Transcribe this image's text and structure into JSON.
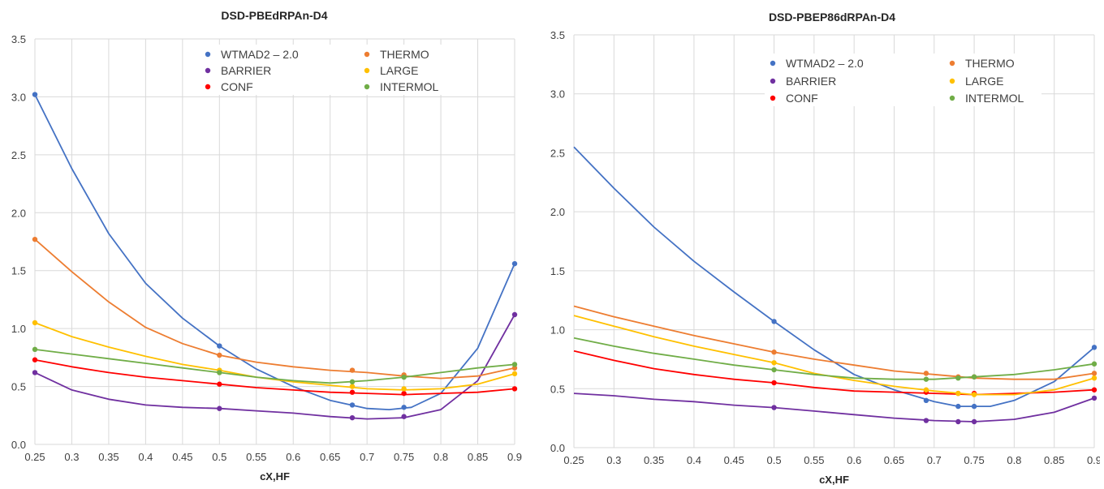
{
  "chart_data": [
    {
      "type": "line",
      "title": "DSD-PBEdRPAn-D4",
      "xlabel": "cX,HF",
      "ylabel": "",
      "xlim": [
        0.25,
        0.9
      ],
      "ylim": [
        0.0,
        3.5
      ],
      "x_ticks": [
        "0.25",
        "0.3",
        "0.35",
        "0.4",
        "0.45",
        "0.5",
        "0.55",
        "0.6",
        "0.65",
        "0.7",
        "0.75",
        "0.8",
        "0.85",
        "0.9"
      ],
      "y_ticks": [
        "0.0",
        "0.5",
        "1.0",
        "1.5",
        "2.0",
        "2.5",
        "3.0",
        "3.5"
      ],
      "grid": true,
      "legend_position": "top-center",
      "series": [
        {
          "name": "WTMAD2 – 2.0",
          "color": "#4472C4",
          "points": [
            [
              0.25,
              3.02
            ],
            [
              0.5,
              0.85
            ],
            [
              0.68,
              0.34
            ],
            [
              0.75,
              0.32
            ],
            [
              0.9,
              1.56
            ]
          ],
          "curve": [
            [
              0.25,
              3.02
            ],
            [
              0.3,
              2.38
            ],
            [
              0.35,
              1.82
            ],
            [
              0.4,
              1.39
            ],
            [
              0.45,
              1.09
            ],
            [
              0.5,
              0.85
            ],
            [
              0.55,
              0.65
            ],
            [
              0.6,
              0.5
            ],
            [
              0.65,
              0.38
            ],
            [
              0.7,
              0.31
            ],
            [
              0.73,
              0.3
            ],
            [
              0.76,
              0.32
            ],
            [
              0.8,
              0.44
            ],
            [
              0.85,
              0.83
            ],
            [
              0.9,
              1.56
            ]
          ]
        },
        {
          "name": "BARRIER",
          "color": "#7030A0",
          "points": [
            [
              0.25,
              0.62
            ],
            [
              0.5,
              0.31
            ],
            [
              0.68,
              0.23
            ],
            [
              0.75,
              0.24
            ],
            [
              0.9,
              1.12
            ]
          ],
          "curve": [
            [
              0.25,
              0.62
            ],
            [
              0.3,
              0.47
            ],
            [
              0.35,
              0.39
            ],
            [
              0.4,
              0.34
            ],
            [
              0.45,
              0.32
            ],
            [
              0.5,
              0.31
            ],
            [
              0.55,
              0.29
            ],
            [
              0.6,
              0.27
            ],
            [
              0.65,
              0.24
            ],
            [
              0.7,
              0.22
            ],
            [
              0.75,
              0.23
            ],
            [
              0.8,
              0.3
            ],
            [
              0.85,
              0.55
            ],
            [
              0.9,
              1.12
            ]
          ]
        },
        {
          "name": "CONF",
          "color": "#FF0000",
          "points": [
            [
              0.25,
              0.73
            ],
            [
              0.5,
              0.52
            ],
            [
              0.68,
              0.45
            ],
            [
              0.75,
              0.44
            ],
            [
              0.9,
              0.48
            ]
          ],
          "curve": [
            [
              0.25,
              0.73
            ],
            [
              0.3,
              0.67
            ],
            [
              0.35,
              0.62
            ],
            [
              0.4,
              0.58
            ],
            [
              0.45,
              0.55
            ],
            [
              0.5,
              0.52
            ],
            [
              0.55,
              0.49
            ],
            [
              0.6,
              0.47
            ],
            [
              0.65,
              0.45
            ],
            [
              0.7,
              0.44
            ],
            [
              0.75,
              0.43
            ],
            [
              0.8,
              0.44
            ],
            [
              0.85,
              0.45
            ],
            [
              0.9,
              0.48
            ]
          ]
        },
        {
          "name": "THERMO",
          "color": "#ED7D31",
          "points": [
            [
              0.25,
              1.77
            ],
            [
              0.5,
              0.77
            ],
            [
              0.68,
              0.64
            ],
            [
              0.75,
              0.6
            ],
            [
              0.9,
              0.66
            ]
          ],
          "curve": [
            [
              0.25,
              1.77
            ],
            [
              0.3,
              1.49
            ],
            [
              0.35,
              1.23
            ],
            [
              0.4,
              1.01
            ],
            [
              0.45,
              0.87
            ],
            [
              0.5,
              0.77
            ],
            [
              0.55,
              0.71
            ],
            [
              0.6,
              0.67
            ],
            [
              0.65,
              0.64
            ],
            [
              0.7,
              0.62
            ],
            [
              0.75,
              0.59
            ],
            [
              0.8,
              0.57
            ],
            [
              0.85,
              0.59
            ],
            [
              0.9,
              0.66
            ]
          ]
        },
        {
          "name": "LARGE",
          "color": "#FFC000",
          "points": [
            [
              0.25,
              1.05
            ],
            [
              0.5,
              0.64
            ],
            [
              0.68,
              0.5
            ],
            [
              0.75,
              0.48
            ],
            [
              0.9,
              0.61
            ]
          ],
          "curve": [
            [
              0.25,
              1.05
            ],
            [
              0.3,
              0.93
            ],
            [
              0.35,
              0.84
            ],
            [
              0.4,
              0.76
            ],
            [
              0.45,
              0.69
            ],
            [
              0.5,
              0.64
            ],
            [
              0.55,
              0.58
            ],
            [
              0.6,
              0.54
            ],
            [
              0.65,
              0.51
            ],
            [
              0.7,
              0.48
            ],
            [
              0.75,
              0.47
            ],
            [
              0.8,
              0.48
            ],
            [
              0.85,
              0.52
            ],
            [
              0.9,
              0.61
            ]
          ]
        },
        {
          "name": "INTERMOL",
          "color": "#70AD47",
          "points": [
            [
              0.25,
              0.82
            ],
            [
              0.5,
              0.62
            ],
            [
              0.68,
              0.54
            ],
            [
              0.75,
              0.58
            ],
            [
              0.9,
              0.69
            ]
          ],
          "curve": [
            [
              0.25,
              0.82
            ],
            [
              0.3,
              0.78
            ],
            [
              0.35,
              0.74
            ],
            [
              0.4,
              0.7
            ],
            [
              0.45,
              0.66
            ],
            [
              0.5,
              0.62
            ],
            [
              0.55,
              0.58
            ],
            [
              0.6,
              0.55
            ],
            [
              0.65,
              0.53
            ],
            [
              0.7,
              0.55
            ],
            [
              0.75,
              0.58
            ],
            [
              0.8,
              0.62
            ],
            [
              0.85,
              0.66
            ],
            [
              0.9,
              0.69
            ]
          ]
        }
      ]
    },
    {
      "type": "line",
      "title": "DSD-PBEP86dRPAn-D4",
      "xlabel": "cX,HF",
      "ylabel": "",
      "xlim": [
        0.25,
        0.9
      ],
      "ylim": [
        0.0,
        3.5
      ],
      "x_ticks": [
        "0.25",
        "0.3",
        "0.35",
        "0.4",
        "0.45",
        "0.5",
        "0.55",
        "0.6",
        "0.65",
        "0.7",
        "0.75",
        "0.8",
        "0.85",
        "0.9"
      ],
      "y_ticks": [
        "0.0",
        "0.5",
        "1.0",
        "1.5",
        "2.0",
        "2.5",
        "3.0",
        "3.5"
      ],
      "grid": true,
      "legend_position": "top-right",
      "series": [
        {
          "name": "WTMAD2 – 2.0",
          "color": "#4472C4",
          "points": [
            [
              0.5,
              1.07
            ],
            [
              0.69,
              0.4
            ],
            [
              0.73,
              0.35
            ],
            [
              0.75,
              0.35
            ],
            [
              0.9,
              0.85
            ]
          ],
          "curve": [
            [
              0.25,
              2.55
            ],
            [
              0.3,
              2.2
            ],
            [
              0.35,
              1.87
            ],
            [
              0.4,
              1.58
            ],
            [
              0.45,
              1.32
            ],
            [
              0.5,
              1.07
            ],
            [
              0.55,
              0.83
            ],
            [
              0.6,
              0.62
            ],
            [
              0.65,
              0.49
            ],
            [
              0.7,
              0.39
            ],
            [
              0.73,
              0.35
            ],
            [
              0.77,
              0.35
            ],
            [
              0.8,
              0.4
            ],
            [
              0.85,
              0.56
            ],
            [
              0.9,
              0.85
            ]
          ]
        },
        {
          "name": "BARRIER",
          "color": "#7030A0",
          "points": [
            [
              0.5,
              0.34
            ],
            [
              0.69,
              0.23
            ],
            [
              0.73,
              0.22
            ],
            [
              0.75,
              0.22
            ],
            [
              0.9,
              0.42
            ]
          ],
          "curve": [
            [
              0.25,
              0.46
            ],
            [
              0.3,
              0.44
            ],
            [
              0.35,
              0.41
            ],
            [
              0.4,
              0.39
            ],
            [
              0.45,
              0.36
            ],
            [
              0.5,
              0.34
            ],
            [
              0.55,
              0.31
            ],
            [
              0.6,
              0.28
            ],
            [
              0.65,
              0.25
            ],
            [
              0.7,
              0.23
            ],
            [
              0.75,
              0.22
            ],
            [
              0.8,
              0.24
            ],
            [
              0.85,
              0.3
            ],
            [
              0.9,
              0.42
            ]
          ]
        },
        {
          "name": "CONF",
          "color": "#FF0000",
          "points": [
            [
              0.5,
              0.55
            ],
            [
              0.69,
              0.47
            ],
            [
              0.73,
              0.46
            ],
            [
              0.75,
              0.46
            ],
            [
              0.9,
              0.49
            ]
          ],
          "curve": [
            [
              0.25,
              0.82
            ],
            [
              0.3,
              0.74
            ],
            [
              0.35,
              0.67
            ],
            [
              0.4,
              0.62
            ],
            [
              0.45,
              0.58
            ],
            [
              0.5,
              0.55
            ],
            [
              0.55,
              0.51
            ],
            [
              0.6,
              0.48
            ],
            [
              0.65,
              0.47
            ],
            [
              0.7,
              0.46
            ],
            [
              0.75,
              0.45
            ],
            [
              0.8,
              0.46
            ],
            [
              0.85,
              0.47
            ],
            [
              0.9,
              0.49
            ]
          ]
        },
        {
          "name": "THERMO",
          "color": "#ED7D31",
          "points": [
            [
              0.5,
              0.81
            ],
            [
              0.69,
              0.63
            ],
            [
              0.73,
              0.6
            ],
            [
              0.75,
              0.6
            ],
            [
              0.9,
              0.63
            ]
          ],
          "curve": [
            [
              0.25,
              1.2
            ],
            [
              0.3,
              1.11
            ],
            [
              0.35,
              1.03
            ],
            [
              0.4,
              0.95
            ],
            [
              0.45,
              0.88
            ],
            [
              0.5,
              0.81
            ],
            [
              0.55,
              0.75
            ],
            [
              0.6,
              0.7
            ],
            [
              0.65,
              0.65
            ],
            [
              0.7,
              0.62
            ],
            [
              0.75,
              0.59
            ],
            [
              0.8,
              0.58
            ],
            [
              0.85,
              0.58
            ],
            [
              0.9,
              0.63
            ]
          ]
        },
        {
          "name": "LARGE",
          "color": "#FFC000",
          "points": [
            [
              0.5,
              0.72
            ],
            [
              0.69,
              0.49
            ],
            [
              0.73,
              0.46
            ],
            [
              0.75,
              0.45
            ],
            [
              0.9,
              0.59
            ]
          ],
          "curve": [
            [
              0.25,
              1.12
            ],
            [
              0.3,
              1.03
            ],
            [
              0.35,
              0.94
            ],
            [
              0.4,
              0.86
            ],
            [
              0.45,
              0.79
            ],
            [
              0.5,
              0.72
            ],
            [
              0.55,
              0.63
            ],
            [
              0.6,
              0.57
            ],
            [
              0.65,
              0.52
            ],
            [
              0.7,
              0.48
            ],
            [
              0.75,
              0.45
            ],
            [
              0.8,
              0.45
            ],
            [
              0.85,
              0.49
            ],
            [
              0.9,
              0.59
            ]
          ]
        },
        {
          "name": "INTERMOL",
          "color": "#70AD47",
          "points": [
            [
              0.5,
              0.66
            ],
            [
              0.69,
              0.58
            ],
            [
              0.73,
              0.59
            ],
            [
              0.75,
              0.6
            ],
            [
              0.9,
              0.71
            ]
          ],
          "curve": [
            [
              0.25,
              0.93
            ],
            [
              0.3,
              0.86
            ],
            [
              0.35,
              0.8
            ],
            [
              0.4,
              0.75
            ],
            [
              0.45,
              0.7
            ],
            [
              0.5,
              0.66
            ],
            [
              0.55,
              0.62
            ],
            [
              0.6,
              0.59
            ],
            [
              0.65,
              0.58
            ],
            [
              0.7,
              0.58
            ],
            [
              0.75,
              0.6
            ],
            [
              0.8,
              0.62
            ],
            [
              0.85,
              0.66
            ],
            [
              0.9,
              0.71
            ]
          ]
        }
      ]
    }
  ]
}
